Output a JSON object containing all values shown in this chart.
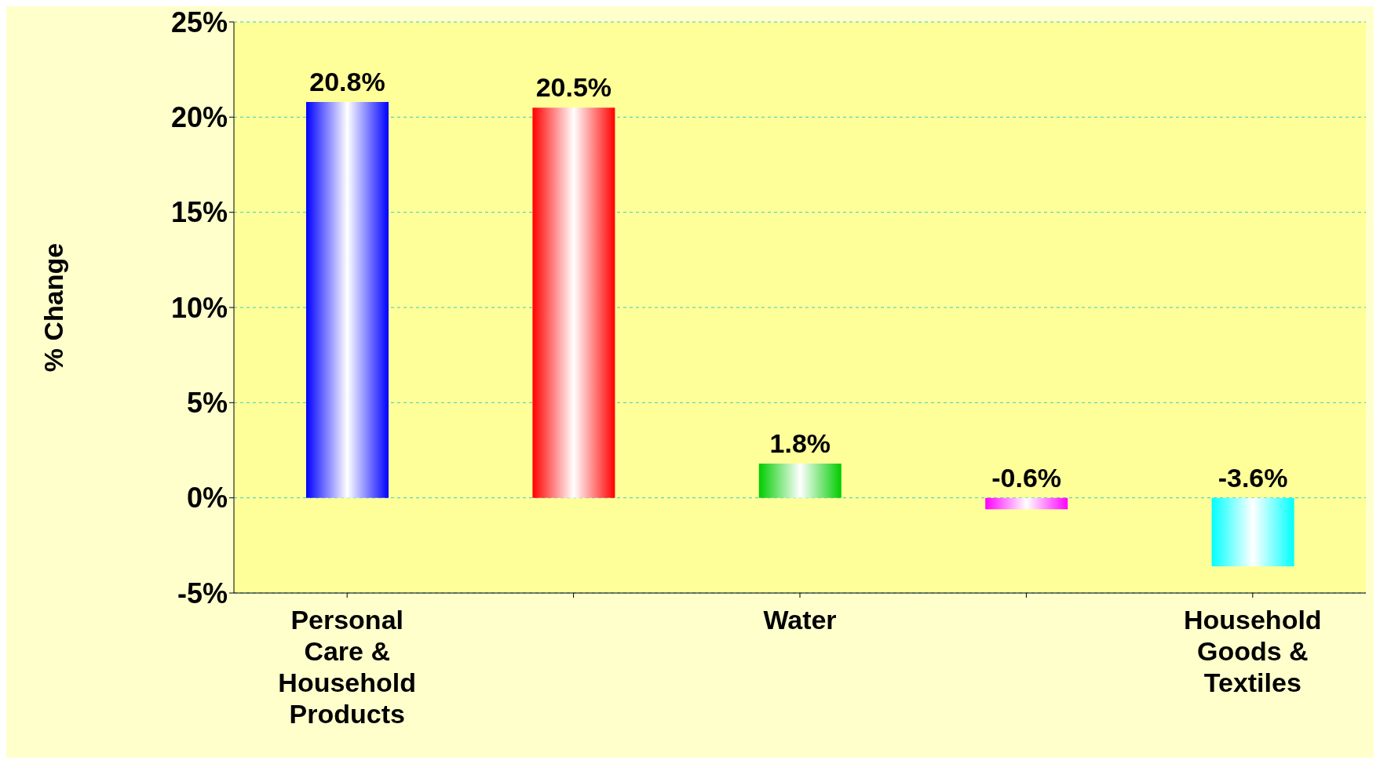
{
  "chart_data": {
    "type": "bar",
    "ylabel": "% Change",
    "categories": [
      "Personal Care & Household Products",
      null,
      "Water",
      null,
      "Household Goods & Textiles"
    ],
    "values": [
      20.8,
      20.5,
      1.8,
      -0.6,
      -3.6
    ],
    "colors": [
      "#0000ff",
      "#ff0000",
      "#00cc00",
      "#ff00ff",
      "#00ffff"
    ],
    "value_labels": [
      "20.8%",
      "20.5%",
      "1.8%",
      "-0.6%",
      "-3.6%"
    ],
    "ylim": [
      -5,
      25
    ],
    "yticks": [
      {
        "value": -5,
        "label": "-5%"
      },
      {
        "value": 0,
        "label": "0%"
      },
      {
        "value": 5,
        "label": "5%"
      },
      {
        "value": 10,
        "label": "10%"
      },
      {
        "value": 15,
        "label": "15%"
      },
      {
        "value": 20,
        "label": "20%"
      },
      {
        "value": 25,
        "label": "25%"
      }
    ],
    "grid": "y",
    "legend": false
  }
}
